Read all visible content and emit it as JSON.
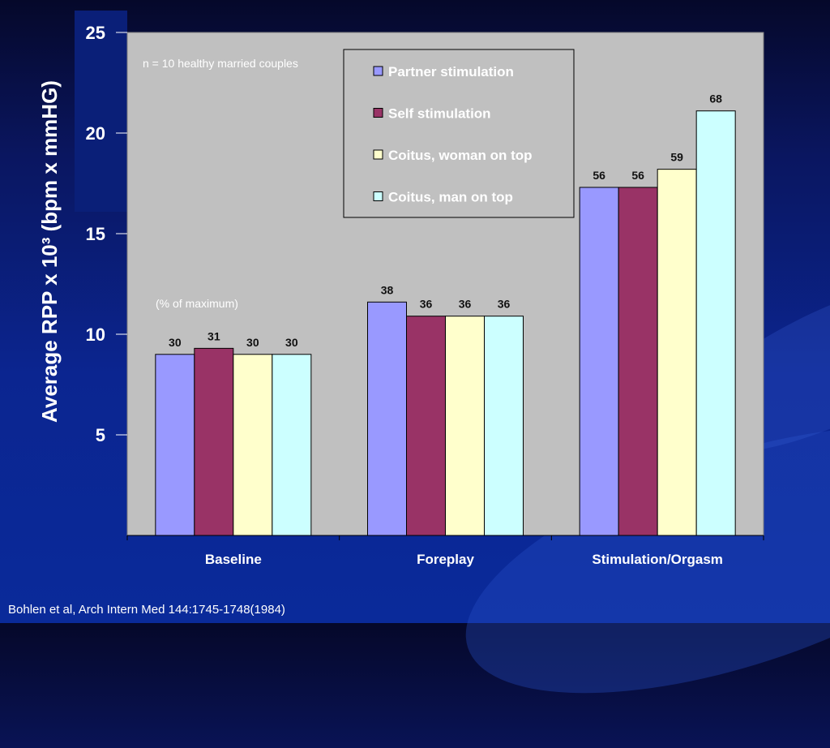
{
  "chart_data": {
    "type": "bar",
    "ylabel": "Average RPP x 10³ (bpm x mmHG)",
    "ylim": [
      0,
      25
    ],
    "yticks": [
      5,
      10,
      15,
      20,
      25
    ],
    "categories": [
      "Baseline",
      "Foreplay",
      "Stimulation/Orgasm"
    ],
    "series": [
      {
        "name": "Partner stimulation",
        "color": "#9999ff",
        "values": [
          9.0,
          11.6,
          17.3
        ],
        "pct_labels": [
          "30",
          "38",
          "56"
        ]
      },
      {
        "name": "Self stimulation",
        "color": "#993366",
        "values": [
          9.3,
          10.9,
          17.3
        ],
        "pct_labels": [
          "31",
          "36",
          "56"
        ]
      },
      {
        "name": "Coitus, woman on top",
        "color": "#ffffcc",
        "values": [
          9.0,
          10.9,
          18.2
        ],
        "pct_labels": [
          "30",
          "36",
          "59"
        ]
      },
      {
        "name": "Coitus, man on top",
        "color": "#ccffff",
        "values": [
          9.0,
          10.9,
          21.1
        ],
        "pct_labels": [
          "30",
          "36",
          "68"
        ]
      }
    ],
    "annotations": [
      "n = 10 healthy married couples",
      "(% of maximum)"
    ],
    "grid": false,
    "legend_position": "top-center",
    "plot_background": "#c0c0c0"
  },
  "citation": "Bohlen et al, Arch Intern Med 144:1745-1748(1984)"
}
